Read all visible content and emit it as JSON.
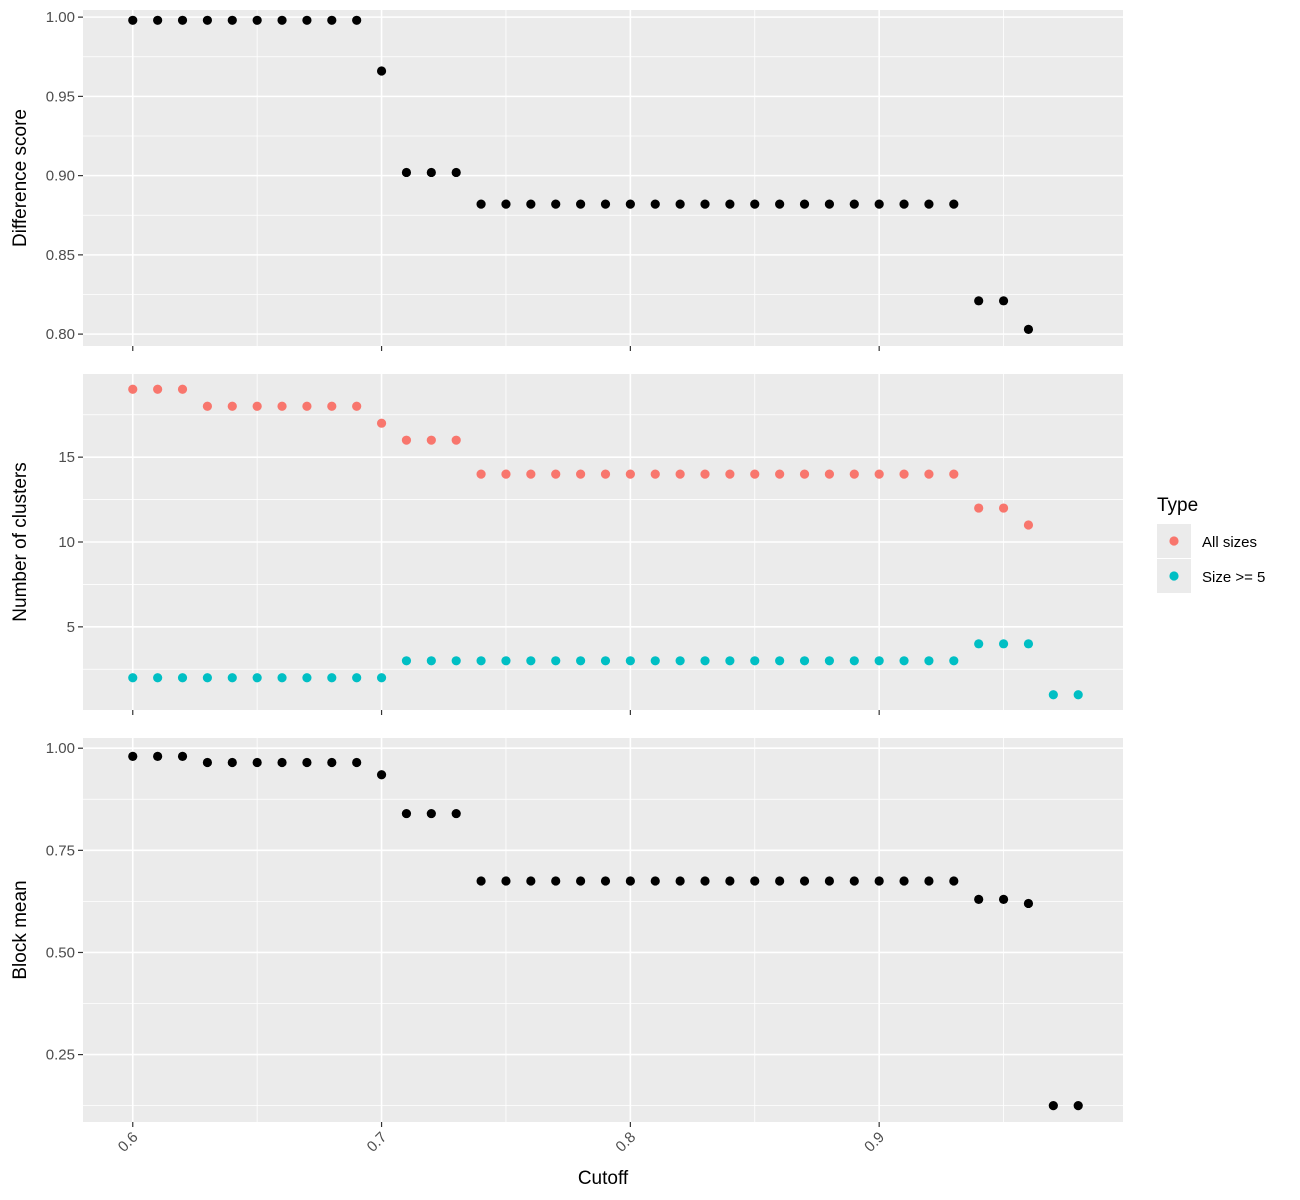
{
  "chart_data": {
    "type": "scatter",
    "layout": "three vertically stacked panels sharing the x axis",
    "xlabel": "Cutoff",
    "x_ticks": [
      0.6,
      0.7,
      0.8,
      0.9
    ],
    "x_tick_labels": [
      "0.6",
      "0.7",
      "0.8",
      "0.9"
    ],
    "xlim": [
      0.58,
      0.998
    ],
    "grid": "on",
    "legend": {
      "title": "Type",
      "placement": "right",
      "entries": [
        {
          "label": "All sizes",
          "color": "#F8766D"
        },
        {
          "label": "Size >= 5",
          "color": "#00BFC4"
        }
      ]
    },
    "panels": [
      {
        "ylabel": "Difference score",
        "ylim": [
          0.7925,
          1.0045
        ],
        "y_ticks": [
          0.8,
          0.85,
          0.9,
          0.95,
          1.0
        ],
        "y_tick_labels": [
          "0.80",
          "0.85",
          "0.90",
          "0.95",
          "1.00"
        ],
        "series": [
          {
            "color": "#000000",
            "x": [
              0.6,
              0.61,
              0.62,
              0.63,
              0.64,
              0.65,
              0.66,
              0.67,
              0.68,
              0.69,
              0.7,
              0.71,
              0.72,
              0.73,
              0.74,
              0.75,
              0.76,
              0.77,
              0.78,
              0.79,
              0.8,
              0.81,
              0.82,
              0.83,
              0.84,
              0.85,
              0.86,
              0.87,
              0.88,
              0.89,
              0.9,
              0.91,
              0.92,
              0.93,
              0.94,
              0.95,
              0.96
            ],
            "y": [
              0.998,
              0.998,
              0.998,
              0.998,
              0.998,
              0.998,
              0.998,
              0.998,
              0.998,
              0.998,
              0.966,
              0.902,
              0.902,
              0.902,
              0.882,
              0.882,
              0.882,
              0.882,
              0.882,
              0.882,
              0.882,
              0.882,
              0.882,
              0.882,
              0.882,
              0.882,
              0.882,
              0.882,
              0.882,
              0.882,
              0.882,
              0.882,
              0.882,
              0.882,
              0.821,
              0.821,
              0.803
            ]
          }
        ]
      },
      {
        "ylabel": "Number of clusters",
        "ylim": [
          0.1,
          19.9
        ],
        "y_ticks": [
          5,
          10,
          15
        ],
        "y_tick_labels": [
          "5",
          "10",
          "15"
        ],
        "series": [
          {
            "name": "All sizes",
            "color": "#F8766D",
            "x": [
              0.6,
              0.61,
              0.62,
              0.63,
              0.64,
              0.65,
              0.66,
              0.67,
              0.68,
              0.69,
              0.7,
              0.71,
              0.72,
              0.73,
              0.74,
              0.75,
              0.76,
              0.77,
              0.78,
              0.79,
              0.8,
              0.81,
              0.82,
              0.83,
              0.84,
              0.85,
              0.86,
              0.87,
              0.88,
              0.89,
              0.9,
              0.91,
              0.92,
              0.93,
              0.94,
              0.95,
              0.96
            ],
            "y": [
              19,
              19,
              19,
              18,
              18,
              18,
              18,
              18,
              18,
              18,
              17,
              16,
              16,
              16,
              14,
              14,
              14,
              14,
              14,
              14,
              14,
              14,
              14,
              14,
              14,
              14,
              14,
              14,
              14,
              14,
              14,
              14,
              14,
              14,
              12,
              12,
              11
            ]
          },
          {
            "name": "Size >= 5",
            "color": "#00BFC4",
            "x": [
              0.6,
              0.61,
              0.62,
              0.63,
              0.64,
              0.65,
              0.66,
              0.67,
              0.68,
              0.69,
              0.7,
              0.71,
              0.72,
              0.73,
              0.74,
              0.75,
              0.76,
              0.77,
              0.78,
              0.79,
              0.8,
              0.81,
              0.82,
              0.83,
              0.84,
              0.85,
              0.86,
              0.87,
              0.88,
              0.89,
              0.9,
              0.91,
              0.92,
              0.93,
              0.94,
              0.95,
              0.96,
              0.97,
              0.98
            ],
            "y": [
              2,
              2,
              2,
              2,
              2,
              2,
              2,
              2,
              2,
              2,
              2,
              3,
              3,
              3,
              3,
              3,
              3,
              3,
              3,
              3,
              3,
              3,
              3,
              3,
              3,
              3,
              3,
              3,
              3,
              3,
              3,
              3,
              3,
              3,
              4,
              4,
              4,
              1,
              1
            ]
          }
        ]
      },
      {
        "ylabel": "Block mean",
        "ylim": [
          0.085,
          1.025
        ],
        "y_ticks": [
          0.25,
          0.5,
          0.75,
          1.0
        ],
        "y_tick_labels": [
          "0.25",
          "0.50",
          "0.75",
          "1.00"
        ],
        "series": [
          {
            "color": "#000000",
            "x": [
              0.6,
              0.61,
              0.62,
              0.63,
              0.64,
              0.65,
              0.66,
              0.67,
              0.68,
              0.69,
              0.7,
              0.71,
              0.72,
              0.73,
              0.74,
              0.75,
              0.76,
              0.77,
              0.78,
              0.79,
              0.8,
              0.81,
              0.82,
              0.83,
              0.84,
              0.85,
              0.86,
              0.87,
              0.88,
              0.89,
              0.9,
              0.91,
              0.92,
              0.93,
              0.94,
              0.95,
              0.96,
              0.97,
              0.98
            ],
            "y": [
              0.98,
              0.98,
              0.98,
              0.965,
              0.965,
              0.965,
              0.965,
              0.965,
              0.965,
              0.965,
              0.935,
              0.84,
              0.84,
              0.84,
              0.675,
              0.675,
              0.675,
              0.675,
              0.675,
              0.675,
              0.675,
              0.675,
              0.675,
              0.675,
              0.675,
              0.675,
              0.675,
              0.675,
              0.675,
              0.675,
              0.675,
              0.675,
              0.675,
              0.675,
              0.63,
              0.63,
              0.62,
              0.125,
              0.125
            ]
          }
        ]
      }
    ]
  }
}
